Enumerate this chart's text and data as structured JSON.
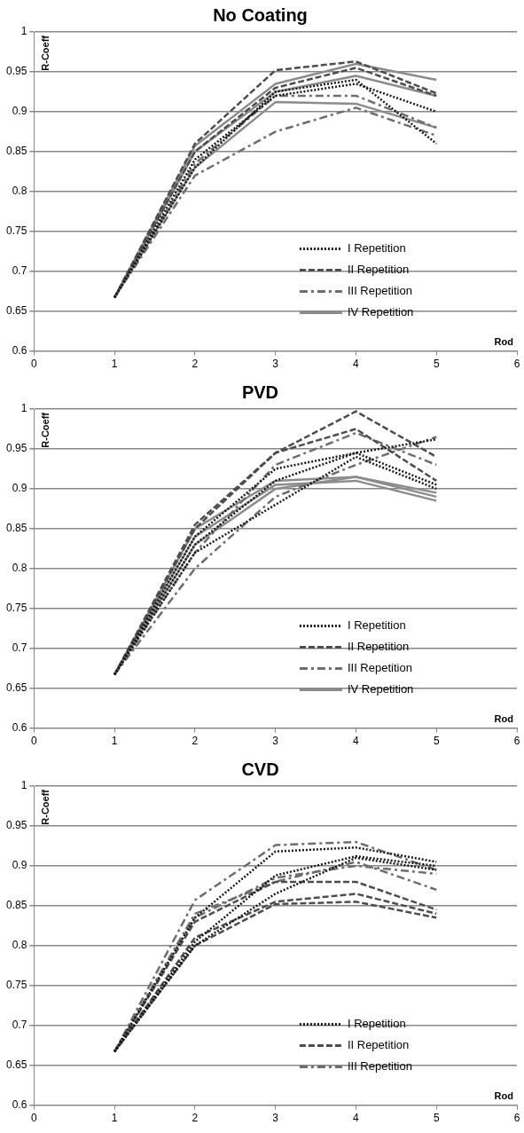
{
  "chart_data": [
    {
      "type": "line",
      "title": "No Coating",
      "xlabel": "Rod",
      "ylabel": "R-Coeff",
      "x": [
        1,
        2,
        3,
        4,
        5
      ],
      "xlim": [
        0,
        6
      ],
      "xticks": [
        0,
        1,
        2,
        3,
        4,
        5,
        6
      ],
      "ylim": [
        0.6,
        1
      ],
      "yticks": [
        0.6,
        0.65,
        0.7,
        0.75,
        0.8,
        0.85,
        0.9,
        0.95,
        1
      ],
      "grid": "y",
      "legend": "bottom right",
      "marker": "none",
      "series": [
        {
          "name": "I Repetition",
          "color": "#1a1a1a",
          "line_style": "dotted",
          "values": [
            0.667,
            0.84,
            0.92,
            0.935,
            0.9
          ]
        },
        {
          "color": "#1a1a1a",
          "line_style": "dotted",
          "values": [
            0.667,
            0.83,
            0.925,
            0.94,
            0.86
          ]
        },
        {
          "name": "II Repetition",
          "color": "#4d4d4d",
          "line_style": "dashed",
          "values": [
            0.667,
            0.86,
            0.952,
            0.963,
            0.923
          ]
        },
        {
          "color": "#4d4d4d",
          "line_style": "dashed",
          "values": [
            0.667,
            0.85,
            0.93,
            0.955,
            0.92
          ]
        },
        {
          "name": "III Repetition",
          "color": "#6e6e6e",
          "line_style": "dashdot",
          "values": [
            0.667,
            0.82,
            0.875,
            0.905,
            0.87
          ]
        },
        {
          "color": "#6e6e6e",
          "line_style": "dashdot",
          "values": [
            0.667,
            0.835,
            0.92,
            0.92,
            0.88
          ]
        },
        {
          "name": "IV Repetition",
          "color": "#8c8c8c",
          "line_style": "solid",
          "values": [
            0.667,
            0.857,
            0.935,
            0.96,
            0.94
          ]
        },
        {
          "color": "#8c8c8c",
          "line_style": "solid",
          "values": [
            0.667,
            0.83,
            0.912,
            0.91,
            0.88
          ]
        },
        {
          "color": "#8c8c8c",
          "line_style": "solid",
          "values": [
            0.667,
            0.85,
            0.925,
            0.945,
            0.92
          ]
        }
      ]
    },
    {
      "type": "line",
      "title": "PVD",
      "xlabel": "Rod",
      "ylabel": "R-Coeff",
      "x": [
        1,
        2,
        3,
        4,
        5
      ],
      "xlim": [
        0,
        6
      ],
      "xticks": [
        0,
        1,
        2,
        3,
        4,
        5,
        6
      ],
      "ylim": [
        0.6,
        1
      ],
      "yticks": [
        0.6,
        0.65,
        0.7,
        0.75,
        0.8,
        0.85,
        0.9,
        0.95,
        1
      ],
      "grid": "y",
      "legend": "bottom right",
      "marker": "none",
      "series": [
        {
          "name": "I Repetition",
          "color": "#1a1a1a",
          "line_style": "dotted",
          "values": [
            0.667,
            0.84,
            0.925,
            0.945,
            0.962
          ]
        },
        {
          "color": "#1a1a1a",
          "line_style": "dotted",
          "values": [
            0.667,
            0.82,
            0.88,
            0.94,
            0.9
          ]
        },
        {
          "color": "#1a1a1a",
          "line_style": "dotted",
          "values": [
            0.667,
            0.83,
            0.91,
            0.945,
            0.905
          ]
        },
        {
          "name": "II Repetition",
          "color": "#4d4d4d",
          "line_style": "dashed",
          "values": [
            0.667,
            0.855,
            0.945,
            0.997,
            0.94
          ]
        },
        {
          "color": "#4d4d4d",
          "line_style": "dashed",
          "values": [
            0.667,
            0.85,
            0.945,
            0.975,
            0.91
          ]
        },
        {
          "name": "III Repetition",
          "color": "#6e6e6e",
          "line_style": "dashdot",
          "values": [
            0.667,
            0.8,
            0.89,
            0.93,
            0.965
          ]
        },
        {
          "color": "#6e6e6e",
          "line_style": "dashdot",
          "values": [
            0.667,
            0.82,
            0.93,
            0.97,
            0.93
          ]
        },
        {
          "name": "IV Repetition",
          "color": "#8c8c8c",
          "line_style": "solid",
          "values": [
            0.667,
            0.85,
            0.91,
            0.915,
            0.89
          ]
        },
        {
          "color": "#8c8c8c",
          "line_style": "solid",
          "values": [
            0.667,
            0.84,
            0.905,
            0.91,
            0.885
          ]
        },
        {
          "color": "#8c8c8c",
          "line_style": "solid",
          "values": [
            0.667,
            0.83,
            0.9,
            0.915,
            0.895
          ]
        }
      ]
    },
    {
      "type": "line",
      "title": "CVD",
      "xlabel": "Rod",
      "ylabel": "R-Coeff",
      "x": [
        1,
        2,
        3,
        4,
        5
      ],
      "xlim": [
        0,
        6
      ],
      "xticks": [
        0,
        1,
        2,
        3,
        4,
        5,
        6
      ],
      "ylim": [
        0.6,
        1
      ],
      "yticks": [
        0.6,
        0.65,
        0.7,
        0.75,
        0.8,
        0.85,
        0.9,
        0.95,
        1
      ],
      "grid": "y",
      "legend": "bottom right",
      "marker": "none",
      "series": [
        {
          "name": "I Repetition",
          "color": "#1a1a1a",
          "line_style": "dotted",
          "values": [
            0.667,
            0.835,
            0.918,
            0.923,
            0.905
          ]
        },
        {
          "color": "#1a1a1a",
          "line_style": "dotted",
          "values": [
            0.667,
            0.805,
            0.888,
            0.912,
            0.9
          ]
        },
        {
          "color": "#1a1a1a",
          "line_style": "dotted",
          "values": [
            0.667,
            0.8,
            0.865,
            0.91,
            0.895
          ]
        },
        {
          "name": "II Repetition",
          "color": "#4d4d4d",
          "line_style": "dashed",
          "values": [
            0.667,
            0.83,
            0.88,
            0.88,
            0.845
          ]
        },
        {
          "color": "#4d4d4d",
          "line_style": "dashed",
          "values": [
            0.667,
            0.81,
            0.855,
            0.865,
            0.84
          ]
        },
        {
          "color": "#4d4d4d",
          "line_style": "dashed",
          "values": [
            0.667,
            0.8,
            0.852,
            0.855,
            0.835
          ]
        },
        {
          "name": "III Repetition",
          "color": "#6e6e6e",
          "line_style": "dashdot",
          "values": [
            0.667,
            0.857,
            0.926,
            0.93,
            0.895
          ]
        },
        {
          "color": "#6e6e6e",
          "line_style": "dashdot",
          "values": [
            0.667,
            0.84,
            0.88,
            0.905,
            0.87
          ]
        },
        {
          "color": "#6e6e6e",
          "line_style": "dashdot",
          "values": [
            0.667,
            0.835,
            0.885,
            0.9,
            0.89
          ]
        }
      ]
    }
  ]
}
